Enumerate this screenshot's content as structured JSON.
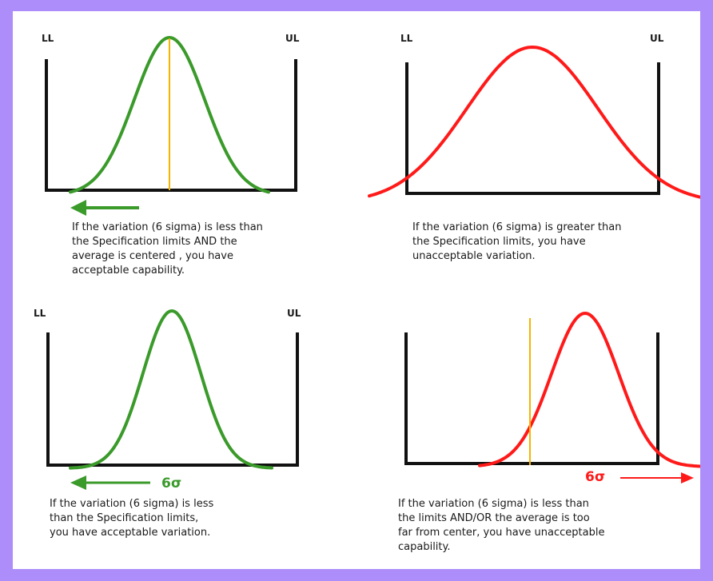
{
  "panels": {
    "p1": {
      "ll": "LL",
      "ul": "UL",
      "caption": "If the variation (6 sigma) is less than\nthe Specification limits AND the\naverage is centered , you have\nacceptable capability."
    },
    "p2": {
      "ll": "LL",
      "ul": "UL",
      "caption": "If the variation (6 sigma) is greater than\nthe Specification limits, you have\nunacceptable variation."
    },
    "p3": {
      "ll": "LL",
      "ul": "UL",
      "sigma": "6σ",
      "caption": "If the variation (6 sigma) is less\nthan the Specification limits,\nyou have acceptable variation."
    },
    "p4": {
      "sigma": "6σ",
      "caption": "If the variation (6 sigma) is less than\nthe limits AND/OR the average is too\nfar from center, you have unacceptable\ncapability."
    }
  },
  "colors": {
    "acceptable": "#3a9a2a",
    "unacceptable": "#ff1a1a",
    "average_line": "#f5b400",
    "frame": "#ad8dfa"
  }
}
